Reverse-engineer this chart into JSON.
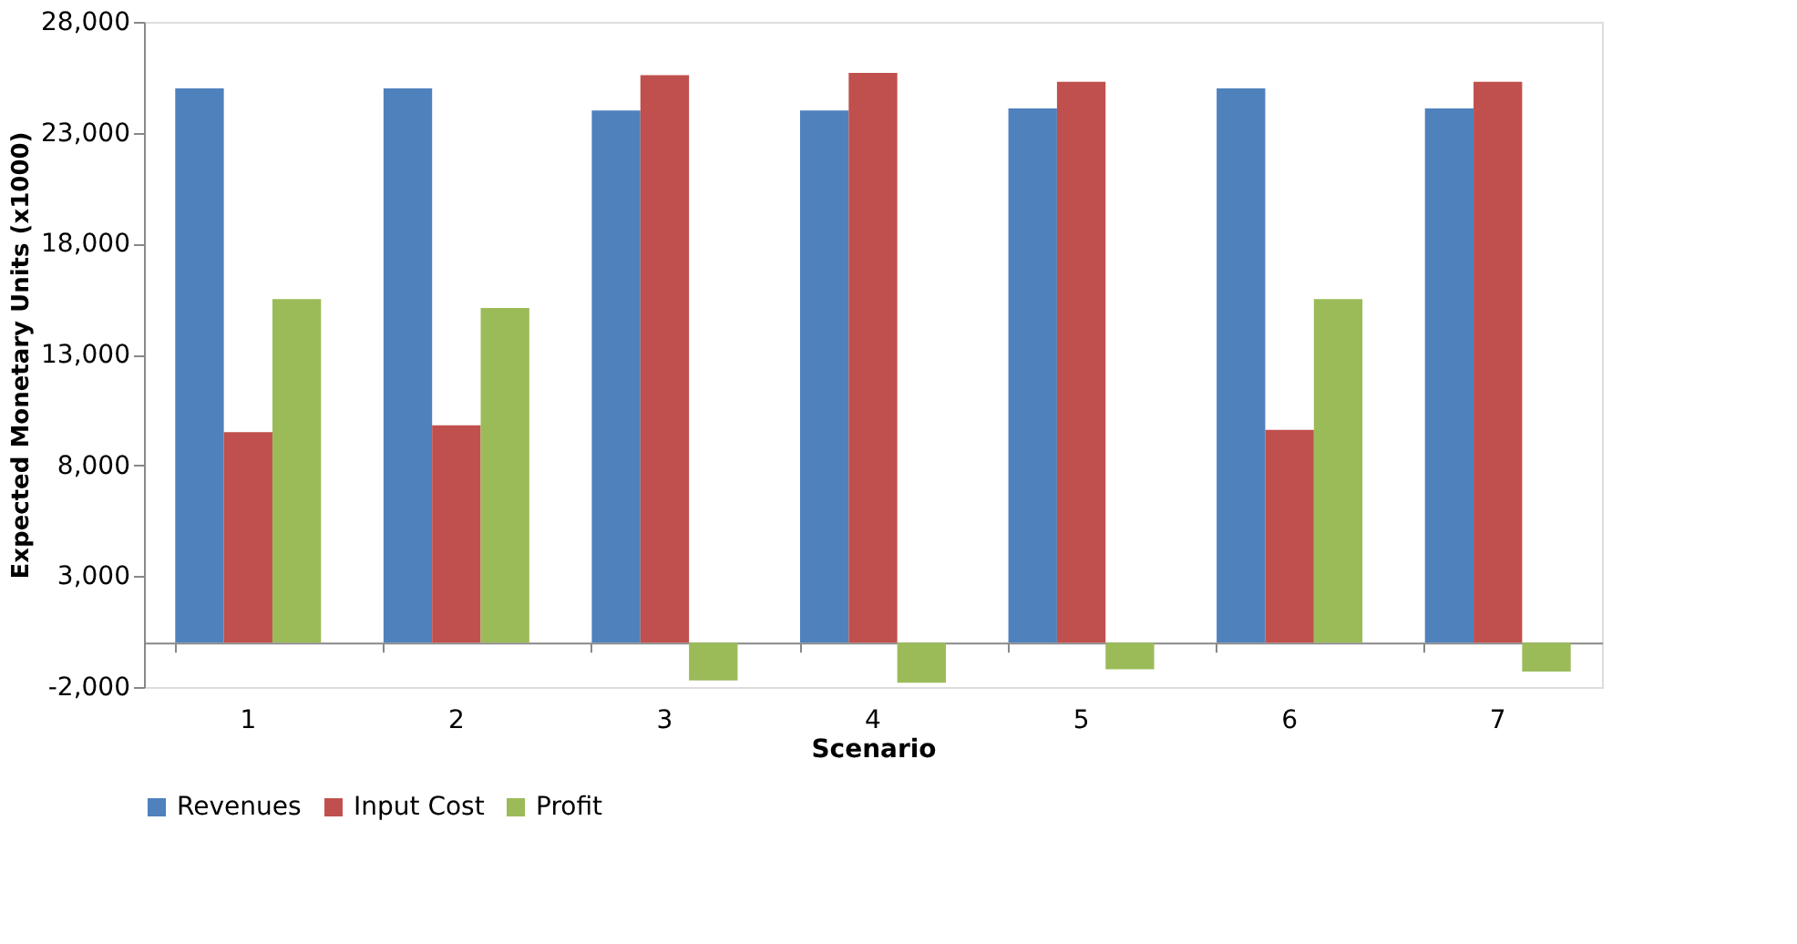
{
  "chart_data": {
    "type": "bar",
    "xlabel": "Scenario",
    "ylabel": "Expected Monetary Units (x1000)",
    "categories": [
      "1",
      "2",
      "3",
      "4",
      "5",
      "6",
      "7"
    ],
    "series": [
      {
        "name": "Revenues",
        "color": "#4f81bd",
        "values": [
          25000,
          25000,
          24000,
          24000,
          24100,
          25000,
          24100
        ]
      },
      {
        "name": "Input Cost",
        "color": "#c0504d",
        "values": [
          9500,
          9800,
          25600,
          25700,
          25300,
          9600,
          25300
        ]
      },
      {
        "name": "Profit",
        "color": "#9bbb59",
        "values": [
          15500,
          15100,
          -1700,
          -1800,
          -1200,
          15500,
          -1300
        ]
      }
    ],
    "ylim": [
      -2000,
      28000
    ],
    "yticks": [
      {
        "value": -2000,
        "label": "-2,000"
      },
      {
        "value": 3000,
        "label": "3,000"
      },
      {
        "value": 8000,
        "label": "8,000"
      },
      {
        "value": 13000,
        "label": "13,000"
      },
      {
        "value": 18000,
        "label": "18,000"
      },
      {
        "value": 23000,
        "label": "23,000"
      },
      {
        "value": 28000,
        "label": "28,000"
      }
    ],
    "grid": false,
    "legend": "bottom"
  }
}
